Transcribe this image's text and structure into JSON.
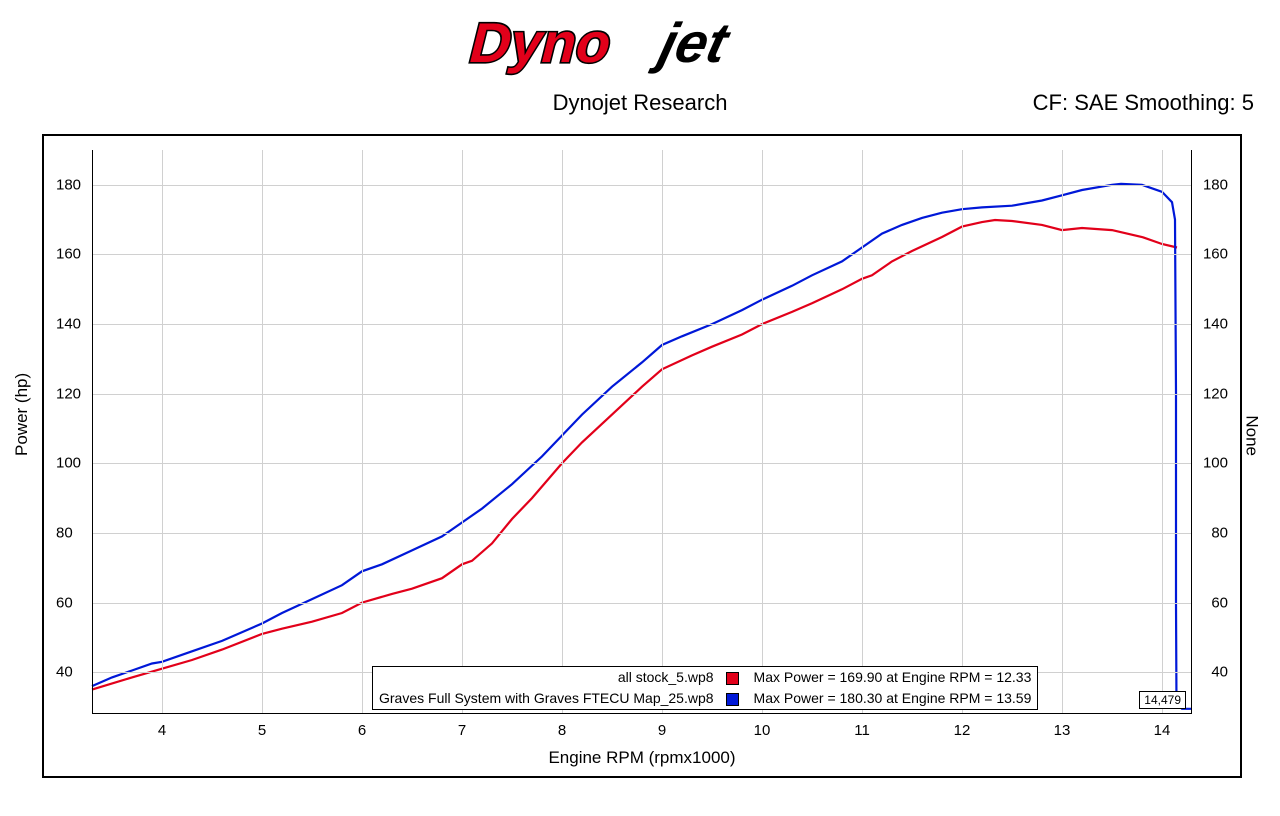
{
  "logo": {
    "prefix": "Dyno",
    "suffix": "jet",
    "prefix_fill": "#e2001a",
    "suffix_fill": "#000000",
    "stroke": "#000000"
  },
  "subtitle": "Dynojet Research",
  "cf_label": "CF: SAE Smoothing: 5",
  "chart": {
    "type": "line",
    "background_color": "#ffffff",
    "grid_color": "#d0d0d0",
    "border_color": "#000000",
    "xlabel": "Engine RPM (rpmx1000)",
    "ylabel_left": "Power (hp)",
    "ylabel_right": "None",
    "xlim": [
      3.3,
      14.3
    ],
    "ylim_left": [
      28,
      190
    ],
    "ylim_right": [
      28,
      190
    ],
    "xticks": [
      4,
      5,
      6,
      7,
      8,
      9,
      10,
      11,
      12,
      13,
      14
    ],
    "yticks_left": [
      40,
      60,
      80,
      100,
      120,
      140,
      160,
      180
    ],
    "yticks_right": [
      40,
      60,
      80,
      100,
      120,
      140,
      160,
      180
    ],
    "label_fontsize": 17,
    "tick_fontsize": 15,
    "line_width": 2.2,
    "series": [
      {
        "name": "all stock_5.wp8",
        "color": "#e2001a",
        "legend_stat": "Max Power = 169.90 at Engine RPM = 12.33",
        "data": [
          [
            3.3,
            35
          ],
          [
            3.7,
            38.5
          ],
          [
            4.0,
            41
          ],
          [
            4.3,
            43.5
          ],
          [
            4.6,
            46.5
          ],
          [
            5.0,
            51
          ],
          [
            5.2,
            52.5
          ],
          [
            5.5,
            54.5
          ],
          [
            5.8,
            57
          ],
          [
            6.0,
            60
          ],
          [
            6.3,
            62.5
          ],
          [
            6.5,
            64
          ],
          [
            6.8,
            67
          ],
          [
            7.0,
            71
          ],
          [
            7.1,
            72
          ],
          [
            7.3,
            77
          ],
          [
            7.5,
            84
          ],
          [
            7.7,
            90
          ],
          [
            8.0,
            100
          ],
          [
            8.2,
            106
          ],
          [
            8.5,
            114
          ],
          [
            8.8,
            122
          ],
          [
            9.0,
            127
          ],
          [
            9.3,
            131
          ],
          [
            9.5,
            133.5
          ],
          [
            9.8,
            137
          ],
          [
            10.0,
            140
          ],
          [
            10.3,
            143.5
          ],
          [
            10.5,
            146
          ],
          [
            10.8,
            150
          ],
          [
            11.0,
            153
          ],
          [
            11.1,
            154
          ],
          [
            11.3,
            158
          ],
          [
            11.5,
            161
          ],
          [
            11.8,
            165
          ],
          [
            12.0,
            168
          ],
          [
            12.2,
            169.3
          ],
          [
            12.33,
            169.9
          ],
          [
            12.5,
            169.6
          ],
          [
            12.8,
            168.5
          ],
          [
            13.0,
            167
          ],
          [
            13.2,
            167.6
          ],
          [
            13.5,
            167
          ],
          [
            13.8,
            165
          ],
          [
            14.0,
            163
          ],
          [
            14.15,
            162
          ]
        ]
      },
      {
        "name": "Graves Full System with Graves FTECU Map_25.wp8",
        "color": "#0018d8",
        "legend_stat": "Max Power = 180.30 at Engine RPM = 13.59",
        "data": [
          [
            3.3,
            36
          ],
          [
            3.5,
            38.5
          ],
          [
            3.7,
            40.5
          ],
          [
            3.9,
            42.5
          ],
          [
            4.0,
            43
          ],
          [
            4.3,
            46
          ],
          [
            4.6,
            49
          ],
          [
            5.0,
            54
          ],
          [
            5.2,
            57
          ],
          [
            5.5,
            61
          ],
          [
            5.8,
            65
          ],
          [
            6.0,
            69
          ],
          [
            6.2,
            71
          ],
          [
            6.5,
            75
          ],
          [
            6.8,
            79
          ],
          [
            7.0,
            83
          ],
          [
            7.2,
            87
          ],
          [
            7.5,
            94
          ],
          [
            7.8,
            102
          ],
          [
            8.0,
            108
          ],
          [
            8.2,
            114
          ],
          [
            8.5,
            122
          ],
          [
            8.8,
            129
          ],
          [
            9.0,
            134
          ],
          [
            9.2,
            136.5
          ],
          [
            9.5,
            140
          ],
          [
            9.8,
            144
          ],
          [
            10.0,
            147
          ],
          [
            10.3,
            151
          ],
          [
            10.5,
            154
          ],
          [
            10.8,
            158
          ],
          [
            11.0,
            162
          ],
          [
            11.2,
            166
          ],
          [
            11.4,
            168.5
          ],
          [
            11.6,
            170.5
          ],
          [
            11.8,
            172
          ],
          [
            12.0,
            173
          ],
          [
            12.2,
            173.5
          ],
          [
            12.5,
            174
          ],
          [
            12.8,
            175.5
          ],
          [
            13.0,
            177
          ],
          [
            13.2,
            178.5
          ],
          [
            13.5,
            180
          ],
          [
            13.59,
            180.3
          ],
          [
            13.8,
            180
          ],
          [
            14.0,
            178
          ],
          [
            14.1,
            175
          ],
          [
            14.13,
            170
          ],
          [
            14.14,
            120
          ],
          [
            14.14,
            60
          ],
          [
            14.145,
            30
          ],
          [
            14.16,
            30
          ],
          [
            14.18,
            30
          ],
          [
            14.2,
            29.5
          ],
          [
            14.3,
            29.5
          ]
        ]
      }
    ],
    "legend": {
      "background": "#ffffff",
      "border": "#000000",
      "fontsize": 14
    }
  },
  "annotation_box_value": "14,479"
}
